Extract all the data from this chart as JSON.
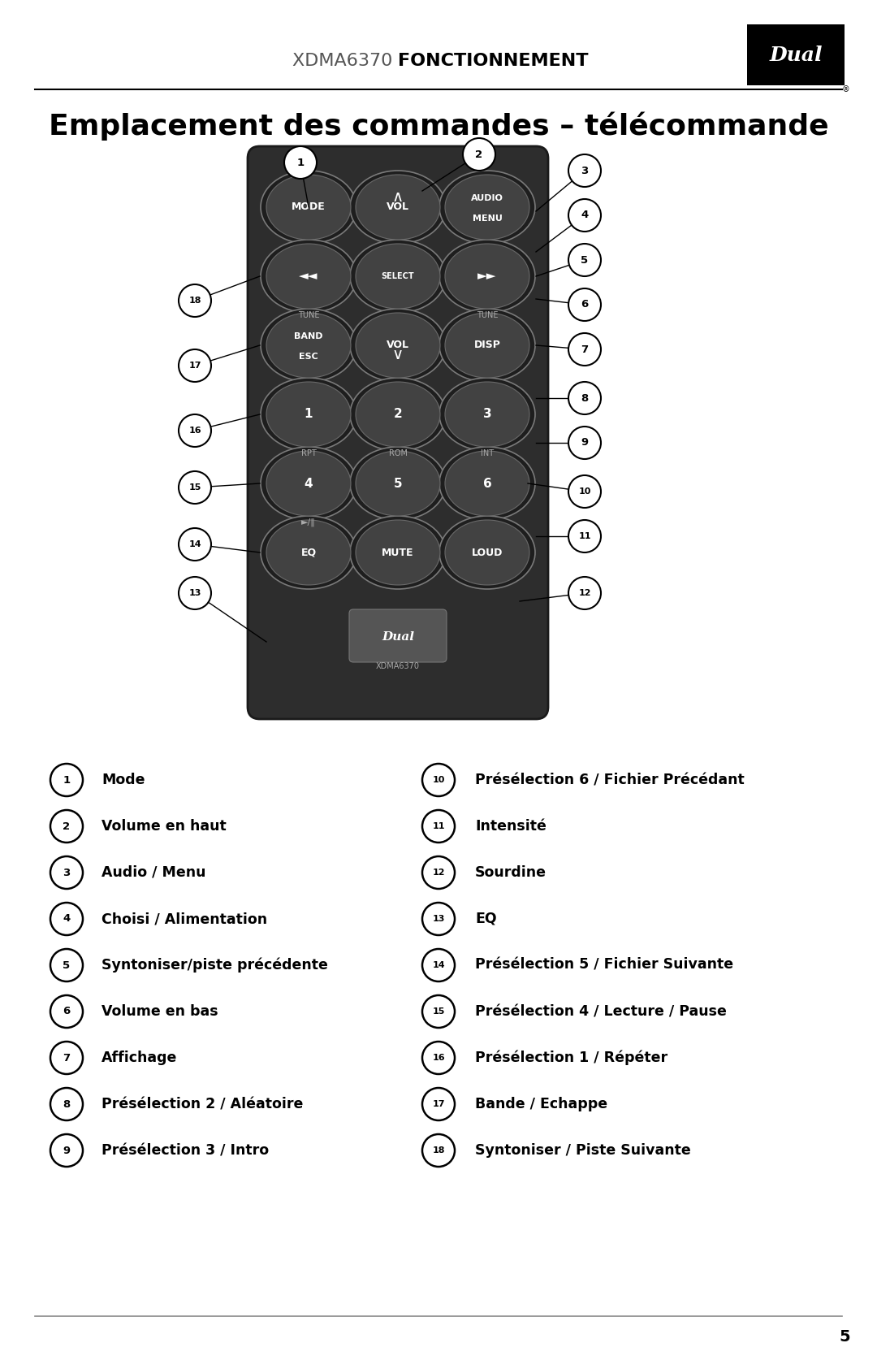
{
  "header_text_normal": "XDMA6370 ",
  "header_text_bold": "FONCTIONNEMENT",
  "title": "Emplacement des commandes – télécommande",
  "page_number": "5",
  "bg_color": "#ffffff",
  "left_labels": [
    [
      1,
      "Mode"
    ],
    [
      2,
      "Volume en haut"
    ],
    [
      3,
      "Audio / Menu"
    ],
    [
      4,
      "Choisi / Alimentation"
    ],
    [
      5,
      "Syntoniser/piste précédente"
    ],
    [
      6,
      "Volume en bas"
    ],
    [
      7,
      "Affichage"
    ],
    [
      8,
      "Présélection 2 / Aléatoire"
    ],
    [
      9,
      "Présélection 3 / Intro"
    ]
  ],
  "right_labels": [
    [
      10,
      "Présélection 6 / Fichier Précédant"
    ],
    [
      11,
      "Intensité"
    ],
    [
      12,
      "Sourdine"
    ],
    [
      13,
      "EQ"
    ],
    [
      14,
      "Présélection 5 / Fichier Suivante"
    ],
    [
      15,
      "Présélection 4 / Lecture / Pause"
    ],
    [
      16,
      "Présélection 1 / Répéter"
    ],
    [
      17,
      "Bande / Echappe"
    ],
    [
      18,
      "Syntoniser / Piste Suivante"
    ]
  ]
}
